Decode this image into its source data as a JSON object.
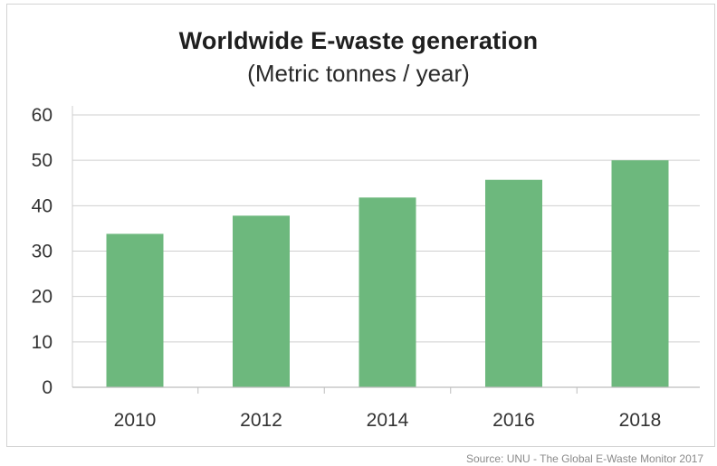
{
  "chart_data": {
    "type": "bar",
    "title": "Worldwide E-waste generation",
    "subtitle": "(Metric tonnes / year)",
    "xlabel": "",
    "ylabel": "",
    "categories": [
      "2010",
      "2012",
      "2014",
      "2016",
      "2018"
    ],
    "values": [
      33.8,
      37.8,
      41.8,
      45.7,
      50.0
    ],
    "ylim": [
      0,
      60
    ],
    "yticks": [
      0,
      10,
      20,
      30,
      40,
      50,
      60
    ],
    "grid": true,
    "legend": "none",
    "bar_color": "#6db87d",
    "source": "Source: UNU - The Global E-Waste Monitor 2017"
  }
}
